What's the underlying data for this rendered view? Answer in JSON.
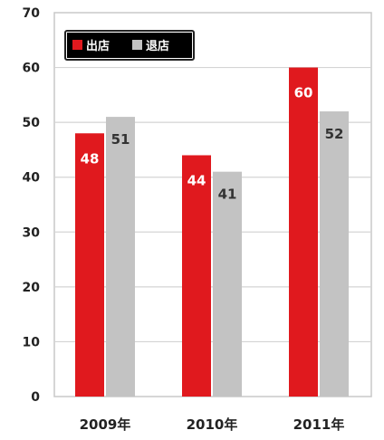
{
  "chart_data": {
    "type": "bar",
    "categories": [
      "2009年",
      "2010年",
      "2011年"
    ],
    "series": [
      {
        "name": "出店",
        "values": [
          48,
          44,
          60
        ],
        "color": "#e0191e",
        "label_color": "#ffffff"
      },
      {
        "name": "退店",
        "values": [
          51,
          41,
          52
        ],
        "color": "#c3c3c3",
        "label_color": "#333333"
      }
    ],
    "ylim": [
      0,
      70
    ],
    "yticks": [
      "0",
      "10",
      "20",
      "30",
      "40",
      "50",
      "60",
      "70"
    ],
    "grid": true,
    "legend": {
      "position": "top-left",
      "background": "#000000",
      "text_color": "#ffffff"
    }
  }
}
